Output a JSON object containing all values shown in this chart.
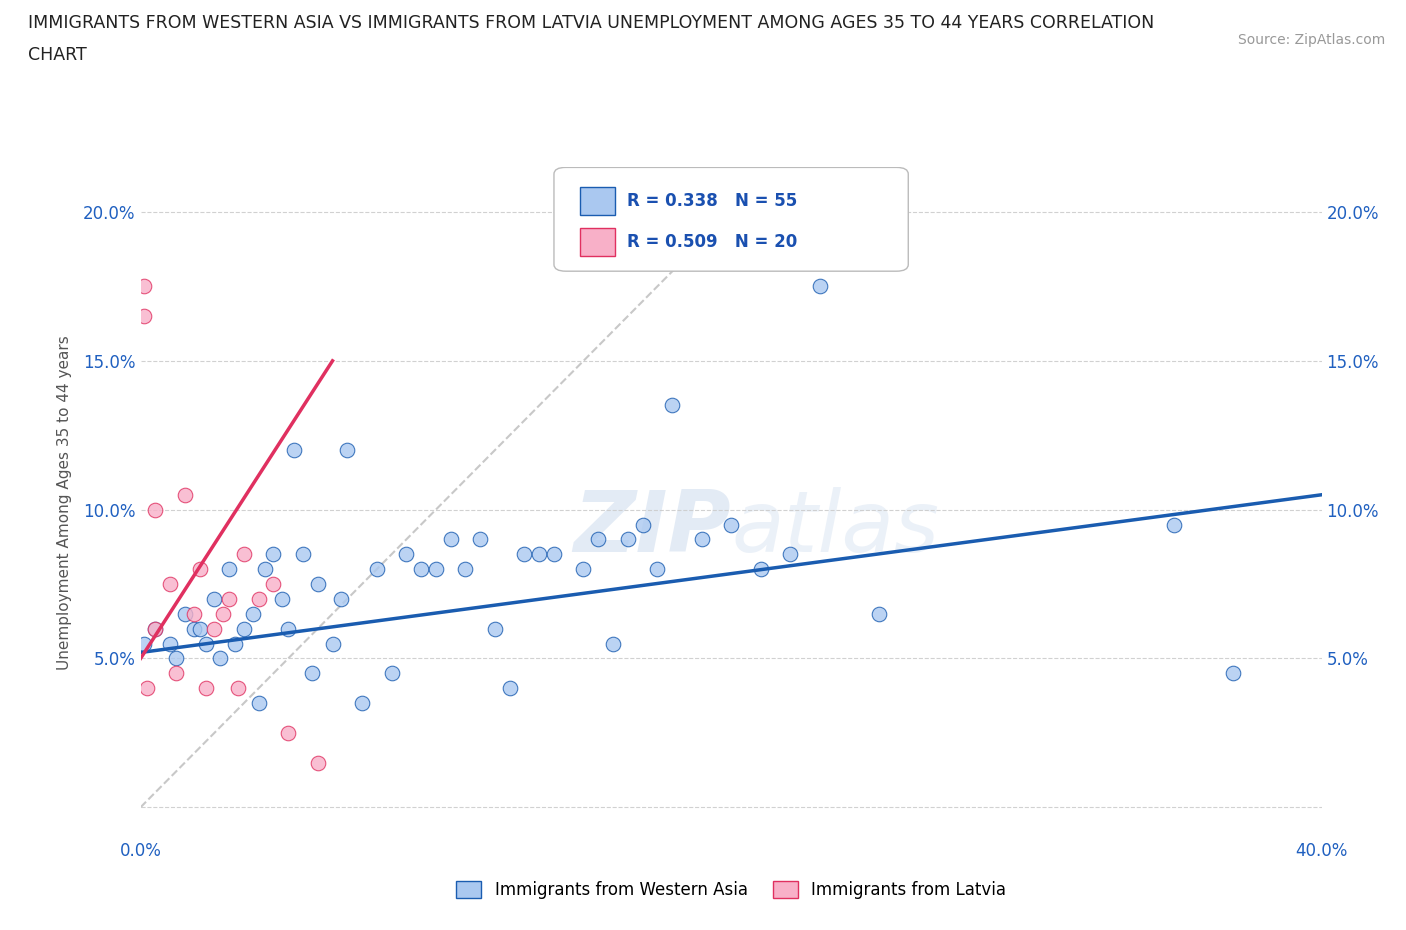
{
  "title_line1": "IMMIGRANTS FROM WESTERN ASIA VS IMMIGRANTS FROM LATVIA UNEMPLOYMENT AMONG AGES 35 TO 44 YEARS CORRELATION",
  "title_line2": "CHART",
  "source": "Source: ZipAtlas.com",
  "ylabel": "Unemployment Among Ages 35 to 44 years",
  "xmin": 0.0,
  "xmax": 0.4,
  "ymin": -0.01,
  "ymax": 0.215,
  "R_western_asia": 0.338,
  "N_western_asia": 55,
  "R_latvia": 0.509,
  "N_latvia": 20,
  "color_western_asia": "#aac8f0",
  "color_latvia": "#f8b0c8",
  "line_color_western_asia": "#1a5cb0",
  "line_color_latvia": "#e03060",
  "trendline_dashed_color": "#c8c8c8",
  "western_asia_x": [
    0.001,
    0.005,
    0.01,
    0.012,
    0.015,
    0.018,
    0.02,
    0.022,
    0.025,
    0.027,
    0.03,
    0.032,
    0.035,
    0.038,
    0.04,
    0.042,
    0.045,
    0.048,
    0.05,
    0.052,
    0.055,
    0.058,
    0.06,
    0.065,
    0.068,
    0.07,
    0.075,
    0.08,
    0.085,
    0.09,
    0.095,
    0.1,
    0.105,
    0.11,
    0.115,
    0.12,
    0.125,
    0.13,
    0.135,
    0.14,
    0.15,
    0.155,
    0.16,
    0.165,
    0.17,
    0.175,
    0.18,
    0.19,
    0.2,
    0.21,
    0.22,
    0.23,
    0.25,
    0.35,
    0.37
  ],
  "western_asia_y": [
    0.055,
    0.06,
    0.055,
    0.05,
    0.065,
    0.06,
    0.06,
    0.055,
    0.07,
    0.05,
    0.08,
    0.055,
    0.06,
    0.065,
    0.035,
    0.08,
    0.085,
    0.07,
    0.06,
    0.12,
    0.085,
    0.045,
    0.075,
    0.055,
    0.07,
    0.12,
    0.035,
    0.08,
    0.045,
    0.085,
    0.08,
    0.08,
    0.09,
    0.08,
    0.09,
    0.06,
    0.04,
    0.085,
    0.085,
    0.085,
    0.08,
    0.09,
    0.055,
    0.09,
    0.095,
    0.08,
    0.135,
    0.09,
    0.095,
    0.08,
    0.085,
    0.175,
    0.065,
    0.095,
    0.045
  ],
  "latvia_x": [
    0.001,
    0.001,
    0.002,
    0.005,
    0.005,
    0.01,
    0.012,
    0.015,
    0.018,
    0.02,
    0.022,
    0.025,
    0.028,
    0.03,
    0.033,
    0.035,
    0.04,
    0.045,
    0.05,
    0.06
  ],
  "latvia_y": [
    0.175,
    0.165,
    0.04,
    0.1,
    0.06,
    0.075,
    0.045,
    0.105,
    0.065,
    0.08,
    0.04,
    0.06,
    0.065,
    0.07,
    0.04,
    0.085,
    0.07,
    0.075,
    0.025,
    0.015
  ],
  "watermark": "ZIPatlas",
  "background_color": "#ffffff",
  "grid_color": "#cccccc"
}
